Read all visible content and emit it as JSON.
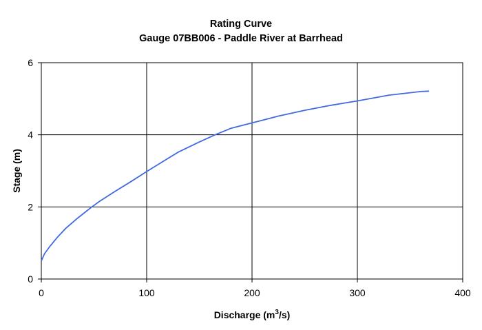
{
  "chart_data": {
    "type": "line",
    "title": "Rating Curve",
    "subtitle": "Gauge 07BB006 - Paddle River at Barrhead",
    "xlabel": "Discharge (m",
    "xlabel_sup": "3",
    "xlabel_suffix": "/s)",
    "ylabel": "Stage (m)",
    "xlim": [
      0,
      400
    ],
    "ylim": [
      0,
      6
    ],
    "xticks": [
      0,
      100,
      200,
      300,
      400
    ],
    "yticks": [
      0,
      2,
      4,
      6
    ],
    "grid": true,
    "series_color": "#4169e1",
    "series": [
      {
        "x": [
          0,
          3,
          8,
          15,
          23,
          35,
          48,
          55,
          70,
          85,
          100,
          115,
          130,
          150,
          165,
          180,
          200,
          225,
          250,
          275,
          300,
          330,
          360,
          368
        ],
        "y": [
          0.5,
          0.7,
          0.9,
          1.15,
          1.4,
          1.7,
          2.0,
          2.15,
          2.43,
          2.7,
          2.98,
          3.25,
          3.52,
          3.8,
          4.0,
          4.18,
          4.33,
          4.52,
          4.68,
          4.82,
          4.94,
          5.1,
          5.2,
          5.21
        ]
      }
    ]
  }
}
